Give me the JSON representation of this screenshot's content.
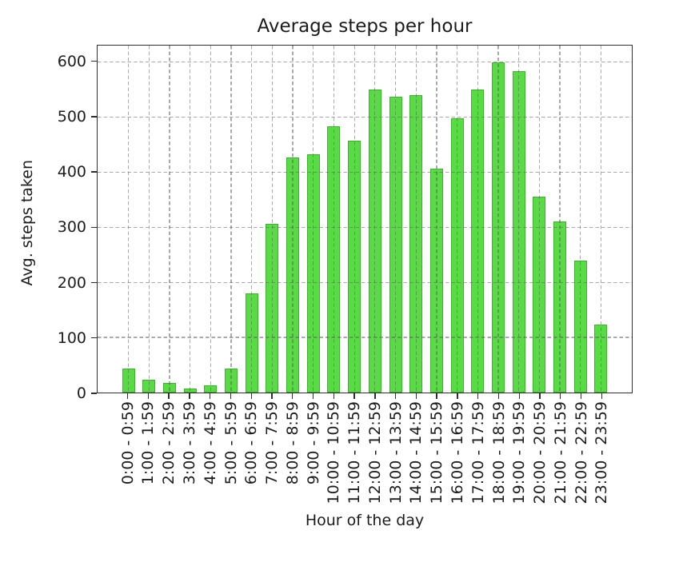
{
  "chart_data": {
    "type": "bar",
    "title": "Average steps per hour",
    "xlabel": "Hour of the day",
    "ylabel": "Avg. steps taken",
    "categories": [
      "0:00 - 0:59",
      "1:00 - 1:59",
      "2:00 - 2:59",
      "3:00 - 3:59",
      "4:00 - 4:59",
      "5:00 - 5:59",
      "6:00 - 6:59",
      "7:00 - 7:59",
      "8:00 - 8:59",
      "9:00 - 9:59",
      "10:00 - 10:59",
      "11:00 - 11:59",
      "12:00 - 12:59",
      "13:00 - 13:59",
      "14:00 - 14:59",
      "15:00 - 15:59",
      "16:00 - 16:59",
      "17:00 - 17:59",
      "18:00 - 18:59",
      "19:00 - 19:59",
      "20:00 - 20:59",
      "21:00 - 21:59",
      "22:00 - 22:59",
      "23:00 - 23:59"
    ],
    "values": [
      43,
      23,
      18,
      8,
      13,
      43,
      180,
      307,
      427,
      433,
      483,
      457,
      550,
      537,
      540,
      407,
      498,
      550,
      600,
      584,
      355,
      310,
      240,
      124
    ],
    "yticks": [
      0,
      100,
      200,
      300,
      400,
      500,
      600
    ],
    "ylim": [
      0,
      630
    ],
    "grid": "on",
    "grid_style": "dashed",
    "legend": "none",
    "colors": {
      "bar_fill": "#58db44",
      "bar_edge": "#2c9220",
      "grid": "#5f5f5f",
      "axis": "#2e2e2e",
      "text": "#1c1c1c",
      "background": "#ffffff"
    }
  }
}
